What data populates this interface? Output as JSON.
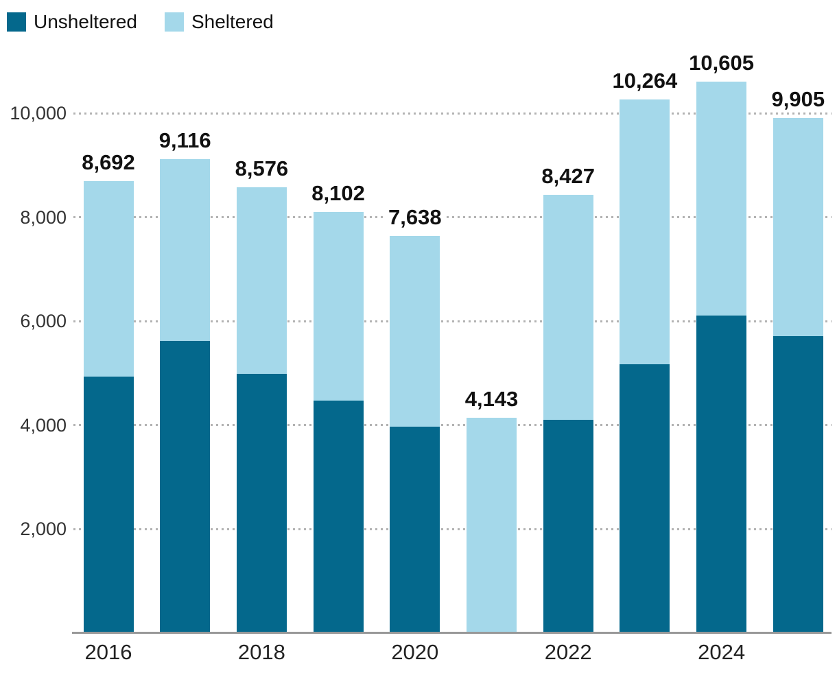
{
  "chart_data": {
    "type": "bar",
    "stacked": true,
    "categories": [
      "2016",
      "2017",
      "2018",
      "2019",
      "2020",
      "2021",
      "2022",
      "2023",
      "2024",
      "2025"
    ],
    "series": [
      {
        "name": "Unsheltered",
        "color": "#04688c",
        "values": [
          4940,
          5621,
          4990,
          4476,
          3971,
          0,
          4106,
          5171,
          6110,
          5714
        ]
      },
      {
        "name": "Sheltered",
        "color": "#a4d8ea",
        "values": [
          3752,
          3495,
          3586,
          3626,
          3667,
          4143,
          4321,
          5093,
          4495,
          4191
        ]
      }
    ],
    "totals": [
      8692,
      9116,
      8576,
      8102,
      7638,
      4143,
      8427,
      10264,
      10605,
      9905
    ],
    "total_labels": [
      "8,692",
      "9,116",
      "8,576",
      "8,102",
      "7,638",
      "4,143",
      "8,427",
      "10,264",
      "10,605",
      "9,905"
    ],
    "y_axis": {
      "ticks": [
        2000,
        4000,
        6000,
        8000,
        10000
      ],
      "tick_labels": [
        "2,000",
        "4,000",
        "6,000",
        "8,000",
        "10,000"
      ],
      "range": [
        0,
        11000
      ]
    },
    "x_axis": {
      "tick_labels": [
        "2016",
        "2018",
        "2020",
        "2022",
        "2024"
      ],
      "tick_category_indexes": [
        0,
        2,
        4,
        6,
        8
      ]
    },
    "legend_position": "top-left",
    "grid": {
      "style": "dotted-horizontal",
      "color": "#b3b3b3"
    },
    "colors": {
      "axis_line": "#999999",
      "y_tick_text": "#333333",
      "x_tick_text": "#222222",
      "total_label_text": "#111111"
    }
  }
}
